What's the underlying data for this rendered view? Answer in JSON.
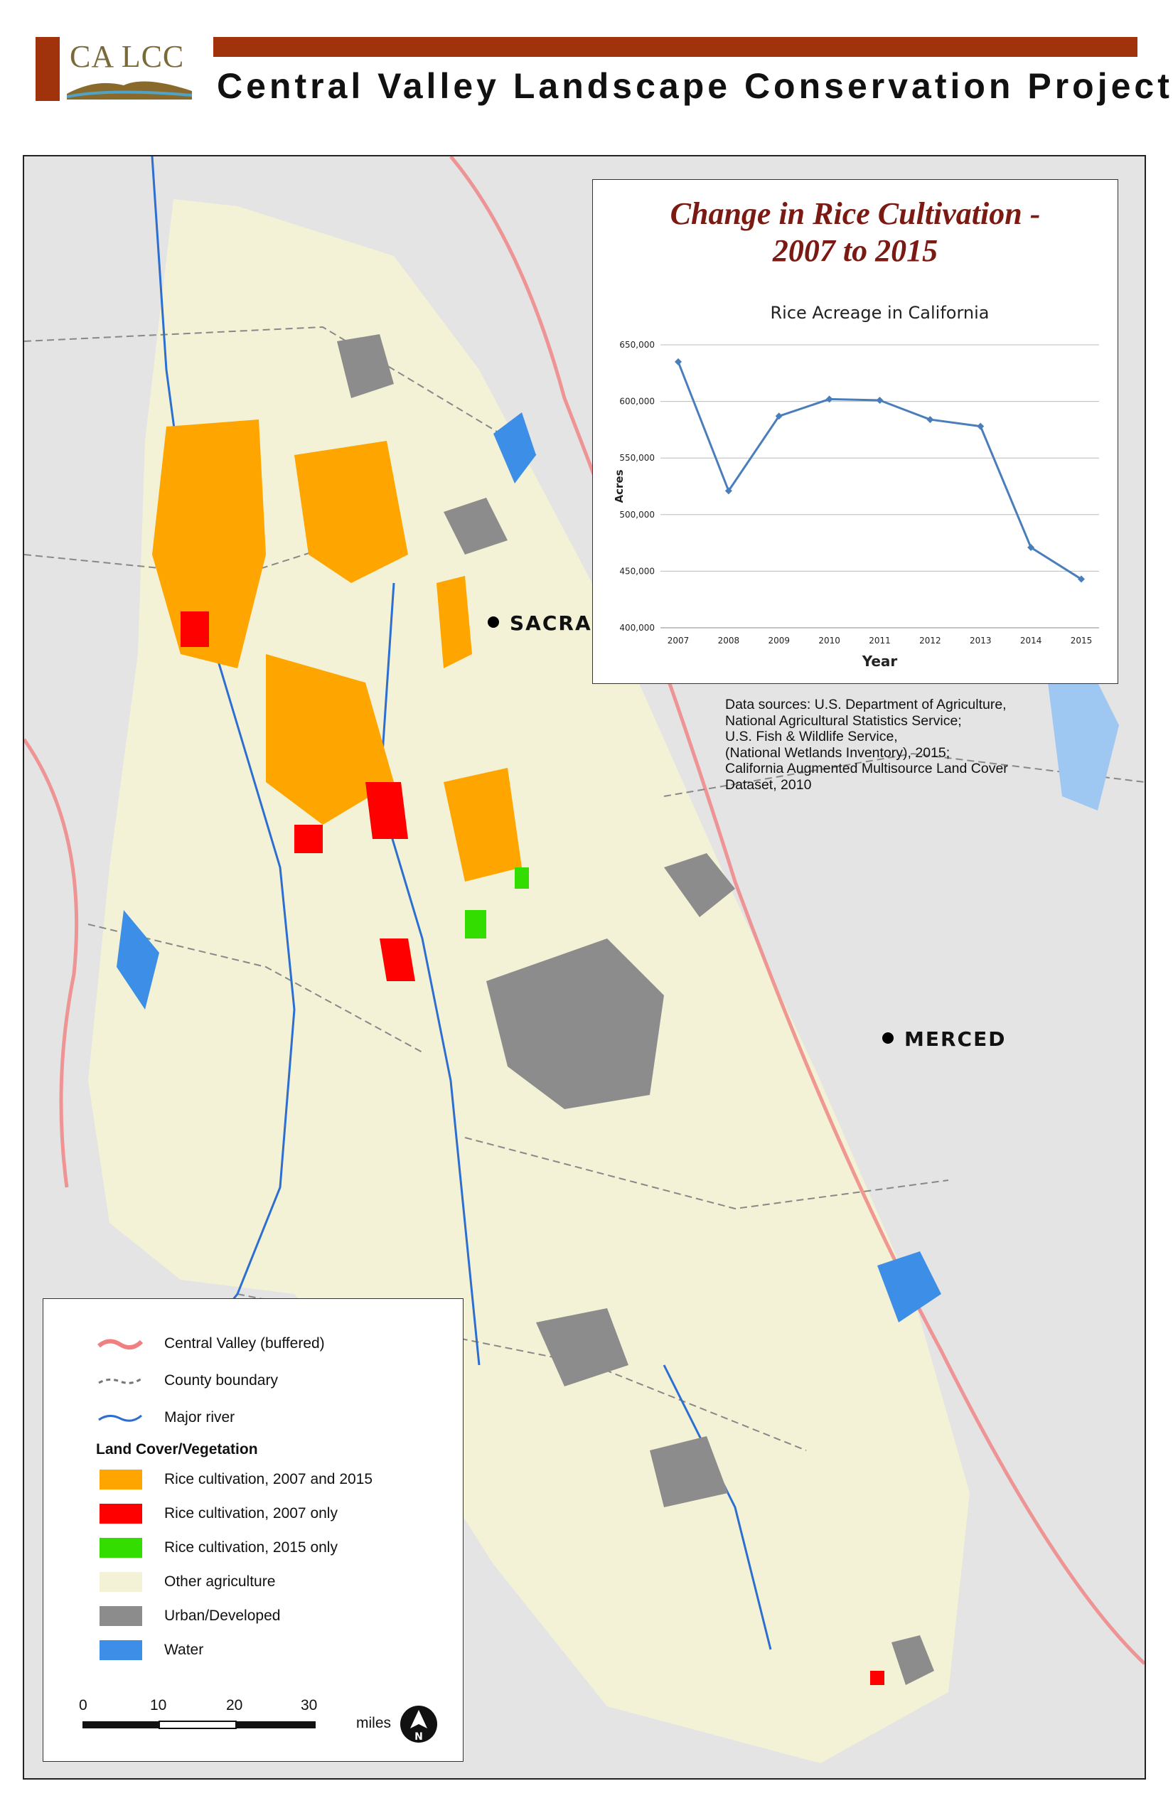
{
  "header": {
    "logo_text": "CA LCC",
    "title": "Central Valley Landscape Conservation Project",
    "accent_color": "#a0330b"
  },
  "map": {
    "cities": [
      {
        "name": "SACRAMENTO"
      },
      {
        "name": "MERCED"
      }
    ],
    "colors": {
      "background": "#e4e4e4",
      "other_agriculture": "#f3f2d6",
      "urban": "#8c8c8c",
      "water": "#3d8ee6",
      "rice_both": "#ffa500",
      "rice_2007": "#ff0000",
      "rice_2015": "#33dd00",
      "valley_buffer": "#f08080"
    }
  },
  "inset": {
    "title_line1": "Change in Rice Cultivation -",
    "title_line2": "2007 to 2015",
    "title_color": "#7a1a12"
  },
  "chart_data": {
    "type": "line",
    "title": "Rice Acreage in California",
    "xlabel": "Year",
    "ylabel": "Acres",
    "x": [
      "2007",
      "2008",
      "2009",
      "2010",
      "2011",
      "2012",
      "2013",
      "2014",
      "2015"
    ],
    "series": [
      {
        "values": [
          635000,
          521000,
          587000,
          602000,
          601000,
          584000,
          578000,
          471000,
          443000
        ]
      }
    ],
    "ylim": [
      400000,
      650000
    ],
    "yticks": [
      "400,000",
      "450,000",
      "500,000",
      "550,000",
      "600,000",
      "650,000"
    ],
    "grid": true,
    "line_color": "#4a7ebb"
  },
  "sources": {
    "lines": [
      "Data sources: U.S. Department of Agriculture,",
      "National Agricultural Statistics Service;",
      "U.S. Fish & Wildlife Service,",
      "(National Wetlands Inventory), 2015;",
      "California Augmented Multisource Land Cover",
      "Dataset, 2010"
    ]
  },
  "legend": {
    "lines": [
      {
        "label": "Central Valley (buffered)",
        "icon": "pink-wave-line"
      },
      {
        "label": "County boundary",
        "icon": "gray-dashed-line"
      },
      {
        "label": "Major river",
        "icon": "blue-wave-line"
      }
    ],
    "heading": "Land Cover/Vegetation",
    "swatches": [
      {
        "label": "Rice cultivation, 2007 and 2015",
        "color": "#ffa500"
      },
      {
        "label": "Rice cultivation, 2007 only",
        "color": "#ff0000"
      },
      {
        "label": "Rice cultivation, 2015 only",
        "color": "#33dd00"
      },
      {
        "label": "Other agriculture",
        "color": "#f3f2d6"
      },
      {
        "label": "Urban/Developed",
        "color": "#8c8c8c"
      },
      {
        "label": "Water",
        "color": "#3d8ee6"
      }
    ],
    "scale": {
      "ticks": [
        "0",
        "10",
        "20",
        "30"
      ],
      "unit": "miles"
    },
    "north_arrow": "north-arrow-icon"
  }
}
